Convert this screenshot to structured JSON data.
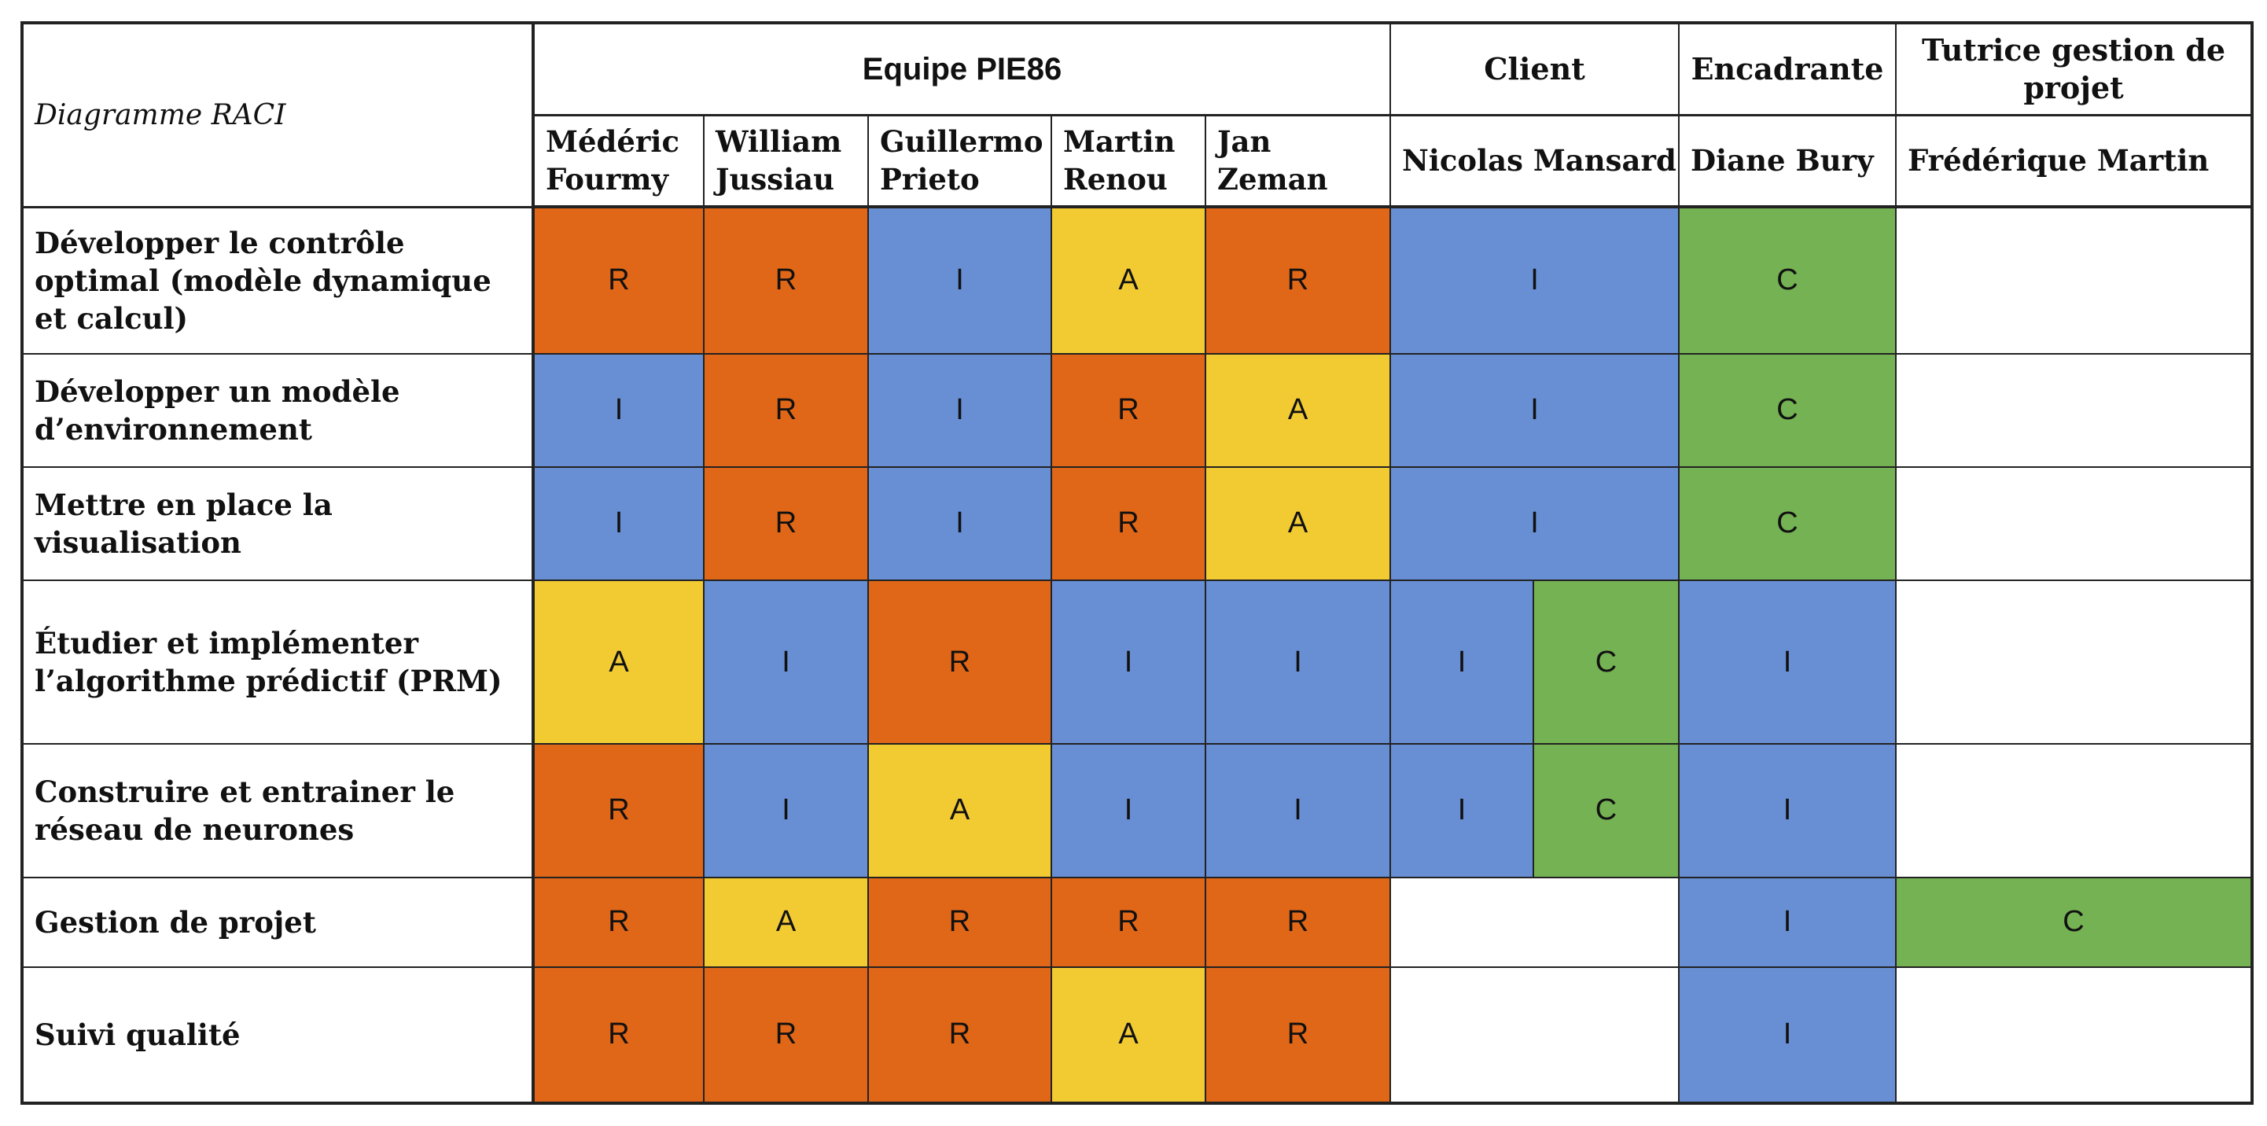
{
  "corner_label": "Diagramme RACI",
  "groups": {
    "team": "Equipe PIE86",
    "client": "Client",
    "supervisor": "Encadrante",
    "tutor": "Tutrice gestion de projet"
  },
  "people": {
    "p1": "Médéric Fourmy",
    "p2": "William Jussiau",
    "p3": "Guillermo Prieto",
    "p4": "Martin Renou",
    "p5": "Jan Zeman",
    "client": "Nicolas Mansard",
    "supervisor": "Diane Bury",
    "tutor": "Frédérique Martin"
  },
  "tasks": [
    {
      "name": "Développer le contrôle optimal (modèle dynamique et calcul)",
      "p1": "R",
      "p2": "R",
      "p3": "I",
      "p4": "A",
      "p5": "R",
      "client": "I",
      "client_b": "",
      "supervisor": "C",
      "tutor": ""
    },
    {
      "name": "Développer un modèle d’environnement",
      "p1": "I",
      "p2": "R",
      "p3": "I",
      "p4": "R",
      "p5": "A",
      "client": "I",
      "client_b": "",
      "supervisor": "C",
      "tutor": ""
    },
    {
      "name": "Mettre en place la visualisation",
      "p1": "I",
      "p2": "R",
      "p3": "I",
      "p4": "R",
      "p5": "A",
      "client": "I",
      "client_b": "",
      "supervisor": "C",
      "tutor": ""
    },
    {
      "name": "Étudier et implémenter l’algorithme prédictif (PRM)",
      "p1": "A",
      "p2": "I",
      "p3": "R",
      "p4": "I",
      "p5": "I",
      "client": "I",
      "client_b": "C",
      "supervisor": "I",
      "tutor": ""
    },
    {
      "name": "Construire et entrainer le réseau de neurones",
      "p1": "R",
      "p2": "I",
      "p3": "A",
      "p4": "I",
      "p5": "I",
      "client": "I",
      "client_b": "C",
      "supervisor": "I",
      "tutor": ""
    },
    {
      "name": "Gestion de projet",
      "p1": "R",
      "p2": "A",
      "p3": "R",
      "p4": "R",
      "p5": "R",
      "client": "",
      "client_b": "",
      "supervisor": "I",
      "tutor": "C"
    },
    {
      "name": "Suivi qualité",
      "p1": "R",
      "p2": "R",
      "p3": "R",
      "p4": "A",
      "p5": "R",
      "client": "",
      "client_b": "",
      "supervisor": "I",
      "tutor": ""
    }
  ],
  "colors": {
    "R": "#E06618",
    "I": "#688FD4",
    "A": "#F2CB33",
    "C": "#75B253"
  }
}
